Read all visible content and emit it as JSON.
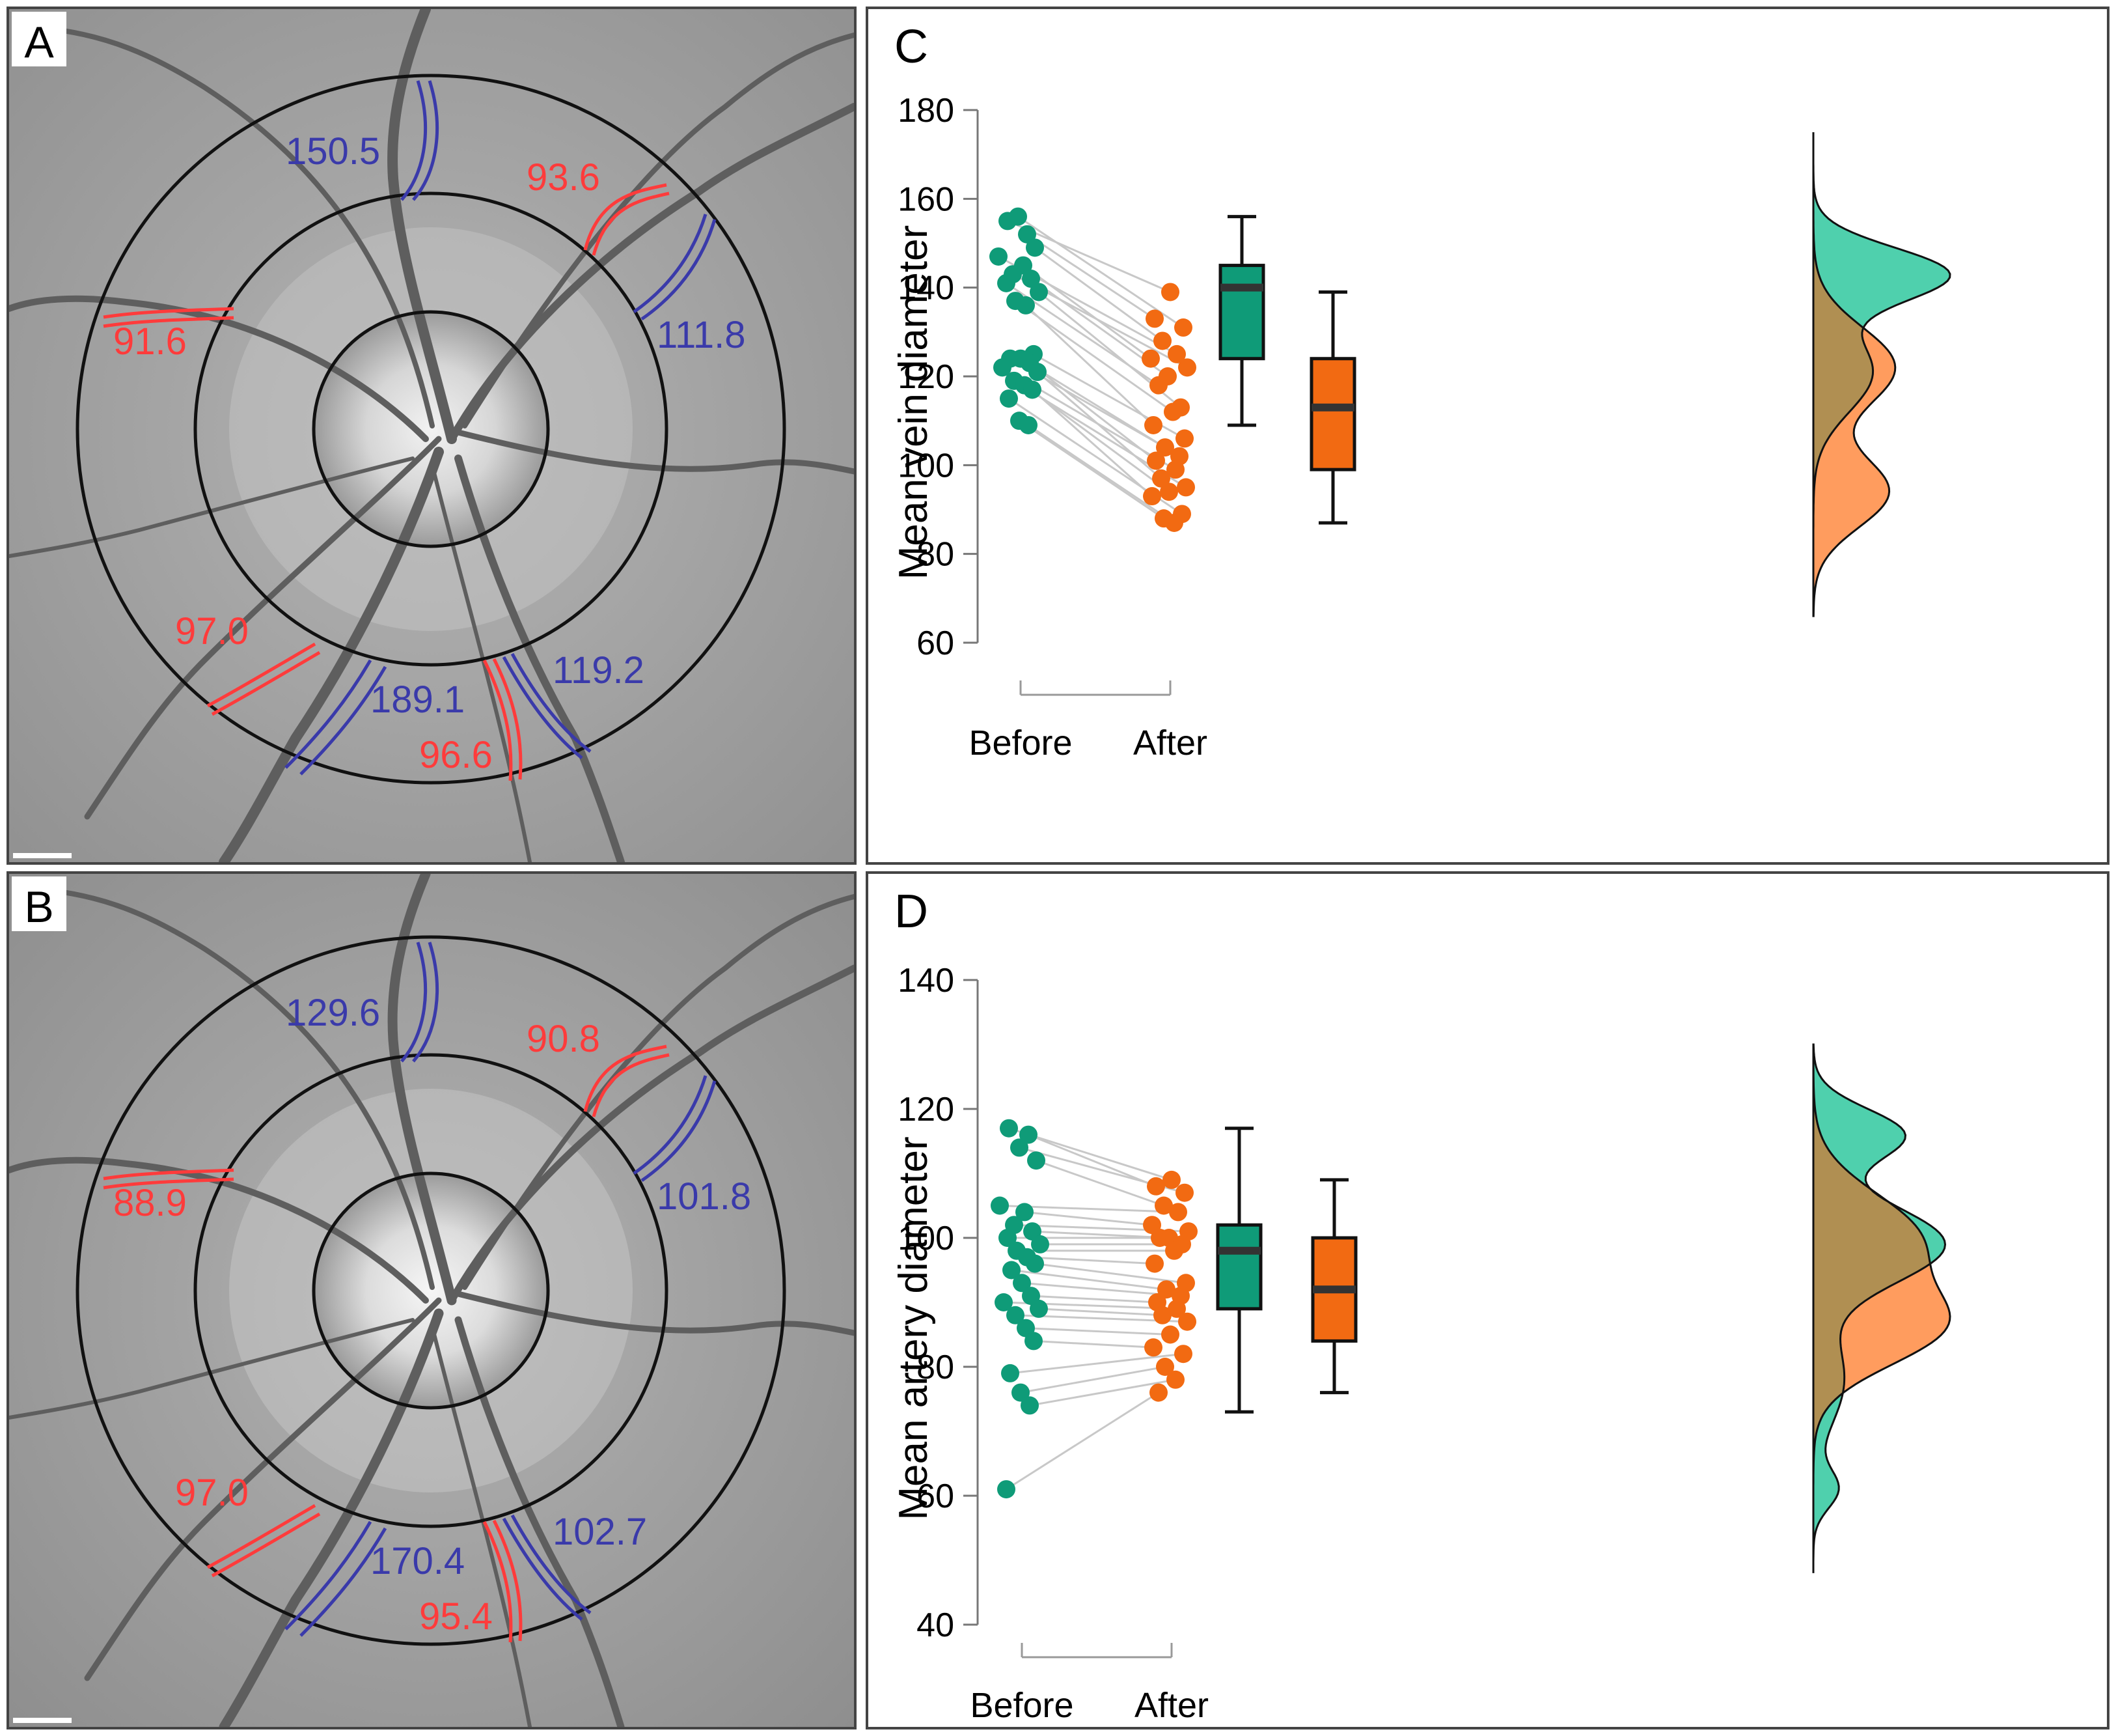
{
  "colors": {
    "before": "#0f9b78",
    "after": "#f26a12",
    "before_density": "#4fd0ad",
    "after_density": "#ff9c5e",
    "overlap_density": "#b08f52",
    "artery": "#ff3b3b",
    "vein": "#3a3aaa",
    "pair_line": "#c8c8c8"
  },
  "fundus_panels": [
    {
      "letter": "A",
      "labels": {
        "vein_top": "150.5",
        "artery_top_right": "93.6",
        "artery_left": "91.6",
        "vein_right": "111.8",
        "artery_bottom_left": "97.0",
        "vein_bottom": "189.1",
        "vein_bottom_right": "119.2",
        "artery_bottom": "96.6"
      }
    },
    {
      "letter": "B",
      "labels": {
        "vein_top": "129.6",
        "artery_top_right": "90.8",
        "artery_left": "88.9",
        "vein_right": "101.8",
        "artery_bottom_left": "97.0",
        "vein_bottom": "170.4",
        "vein_bottom_right": "102.7",
        "artery_bottom": "95.4"
      }
    }
  ],
  "chart_data": [
    {
      "panel": "C",
      "type": "raincloud",
      "ylabel": "Mean vein diameter",
      "xlabel": "",
      "categories": [
        "Before",
        "After"
      ],
      "ylim": [
        60,
        180
      ],
      "yticks": [
        60,
        80,
        100,
        120,
        140,
        160,
        180
      ],
      "grid": false,
      "pairs": [
        [
          155,
          139
        ],
        [
          152,
          133
        ],
        [
          156,
          131
        ],
        [
          149,
          128
        ],
        [
          147,
          125
        ],
        [
          145,
          124
        ],
        [
          143,
          122
        ],
        [
          142,
          120
        ],
        [
          141,
          118
        ],
        [
          139,
          113
        ],
        [
          137,
          112
        ],
        [
          136,
          109
        ],
        [
          125,
          106
        ],
        [
          124,
          104
        ],
        [
          124,
          102
        ],
        [
          123,
          101
        ],
        [
          122,
          99
        ],
        [
          121,
          97
        ],
        [
          119,
          95
        ],
        [
          118,
          94
        ],
        [
          117,
          93
        ],
        [
          115,
          89
        ],
        [
          110,
          88
        ],
        [
          109,
          87
        ]
      ],
      "boxplots": [
        {
          "name": "Before",
          "whisker_low": 109,
          "q1": 124,
          "median": 140,
          "q3": 145,
          "whisker_high": 156
        },
        {
          "name": "After",
          "whisker_low": 87,
          "q1": 99,
          "median": 113,
          "q3": 124,
          "whisker_high": 139
        }
      ],
      "density_range": [
        66,
        175
      ],
      "density": {
        "Before": [
          {
            "mean": 143,
            "sd": 6,
            "weight": 0.6
          },
          {
            "mean": 121,
            "sd": 9,
            "weight": 0.4
          }
        ],
        "After": [
          {
            "mean": 122,
            "sd": 9,
            "weight": 0.55
          },
          {
            "mean": 94,
            "sd": 8,
            "weight": 0.45
          }
        ]
      }
    },
    {
      "panel": "D",
      "type": "raincloud",
      "ylabel": "Mean artery diameter",
      "xlabel": "",
      "categories": [
        "Before",
        "After"
      ],
      "ylim": [
        40,
        140
      ],
      "yticks": [
        40,
        60,
        80,
        100,
        120,
        140
      ],
      "grid": false,
      "pairs": [
        [
          117,
          109
        ],
        [
          116,
          108
        ],
        [
          114,
          107
        ],
        [
          112,
          105
        ],
        [
          105,
          104
        ],
        [
          104,
          102
        ],
        [
          102,
          101
        ],
        [
          101,
          100
        ],
        [
          100,
          100
        ],
        [
          99,
          99
        ],
        [
          98,
          98
        ],
        [
          97,
          96
        ],
        [
          96,
          93
        ],
        [
          95,
          92
        ],
        [
          93,
          91
        ],
        [
          91,
          90
        ],
        [
          90,
          89
        ],
        [
          89,
          88
        ],
        [
          88,
          87
        ],
        [
          86,
          85
        ],
        [
          84,
          83
        ],
        [
          79,
          82
        ],
        [
          76,
          80
        ],
        [
          74,
          78
        ],
        [
          61,
          76
        ]
      ],
      "boxplots": [
        {
          "name": "Before",
          "whisker_low": 73,
          "q1": 89,
          "median": 98,
          "q3": 102,
          "whisker_high": 117
        },
        {
          "name": "After",
          "whisker_low": 76,
          "q1": 84,
          "median": 92,
          "q3": 100,
          "whisker_high": 109
        }
      ],
      "density_range": [
        48,
        130
      ],
      "density": {
        "Before": [
          {
            "mean": 99,
            "sd": 6,
            "weight": 0.55
          },
          {
            "mean": 116,
            "sd": 4,
            "weight": 0.25
          },
          {
            "mean": 78,
            "sd": 7,
            "weight": 0.15
          },
          {
            "mean": 61,
            "sd": 3,
            "weight": 0.05
          }
        ],
        "After": [
          {
            "mean": 100,
            "sd": 7,
            "weight": 0.5
          },
          {
            "mean": 86,
            "sd": 6,
            "weight": 0.5
          }
        ]
      }
    }
  ]
}
